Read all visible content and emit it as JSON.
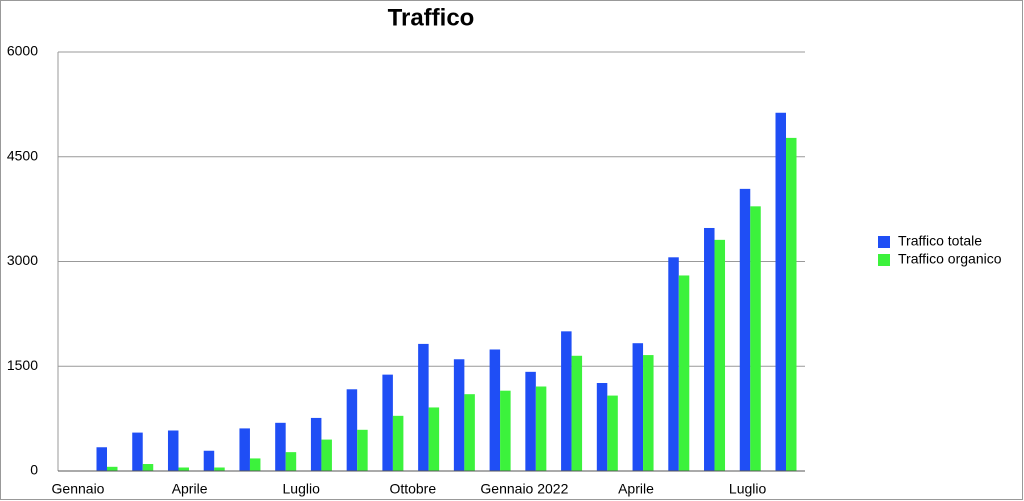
{
  "chart_data": {
    "type": "bar",
    "title": "Traffico",
    "categories": [
      "Gennaio",
      null,
      null,
      "Aprile",
      null,
      null,
      "Luglio",
      null,
      null,
      "Ottobre",
      null,
      null,
      "Gennaio 2022",
      null,
      null,
      "Aprile",
      null,
      null,
      "Luglio",
      null
    ],
    "series": [
      {
        "name": "Traffico totale",
        "color": "#1f4ef5",
        "values": [
          340,
          550,
          580,
          290,
          610,
          690,
          760,
          1170,
          1380,
          1820,
          1600,
          1740,
          1420,
          2000,
          1260,
          1830,
          3060,
          3480,
          4040,
          5130
        ]
      },
      {
        "name": "Traffico organico",
        "color": "#3cf23c",
        "values": [
          60,
          100,
          50,
          50,
          180,
          270,
          450,
          590,
          790,
          910,
          1100,
          1150,
          1210,
          1650,
          1080,
          1660,
          2800,
          3310,
          3790,
          4770
        ]
      }
    ],
    "ylim": [
      0,
      6000
    ],
    "yticks": [
      0,
      1500,
      3000,
      4500,
      6000
    ],
    "grid": true,
    "legend": "right"
  }
}
